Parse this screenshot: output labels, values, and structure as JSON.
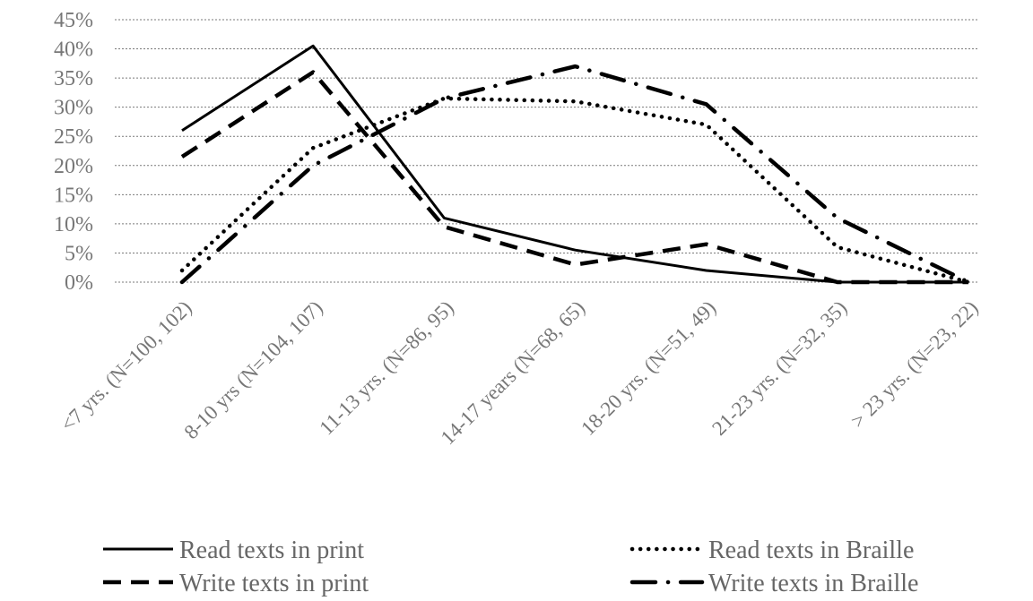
{
  "chart_data": {
    "type": "line",
    "title": "",
    "xlabel": "",
    "ylabel": "",
    "ylim": [
      0,
      45
    ],
    "y_ticks": [
      "0%",
      "5%",
      "10%",
      "15%",
      "20%",
      "25%",
      "30%",
      "35%",
      "40%",
      "45%"
    ],
    "y_tick_values": [
      0,
      5,
      10,
      15,
      20,
      25,
      30,
      35,
      40,
      45
    ],
    "grid": "horizontal dotted",
    "legend_position": "bottom",
    "categories": [
      "<7 yrs. (N=100, 102)",
      "8-10 yrs (N=104, 107)",
      "11-13 yrs. (N=86, 95)",
      "14-17 years (N=68, 65)",
      "18-20 yrs. (N=51, 49)",
      "21-23 yrs. (N=32, 35)",
      "> 23 yrs. (N=23, 22)"
    ],
    "series": [
      {
        "name": "Read texts  in print",
        "style": "solid",
        "color": "#000000",
        "values": [
          26,
          40.5,
          11,
          5.5,
          2,
          0,
          0
        ]
      },
      {
        "name": "Read texts  in Braille",
        "style": "dotted",
        "color": "#000000",
        "values": [
          2,
          23,
          31.5,
          31,
          27,
          6,
          0
        ]
      },
      {
        "name": "Write texts in print",
        "style": "dashed",
        "color": "#000000",
        "values": [
          21.5,
          36,
          9.5,
          3,
          6.5,
          0,
          0
        ]
      },
      {
        "name": "Write texts in Braille",
        "style": "dash-dot",
        "color": "#000000",
        "values": [
          0,
          20,
          31.5,
          37,
          30.5,
          11,
          0
        ]
      }
    ]
  }
}
